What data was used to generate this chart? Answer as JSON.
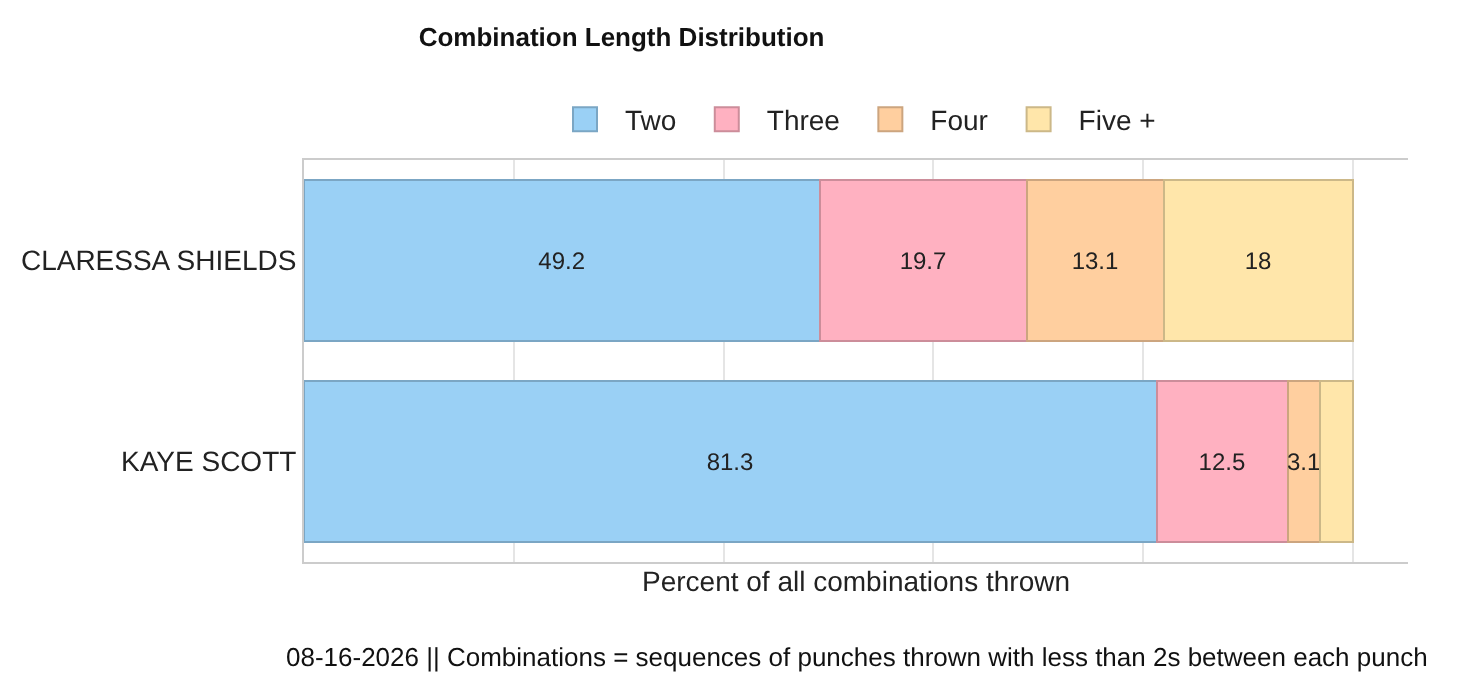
{
  "chart_data": {
    "type": "bar",
    "orientation": "horizontal",
    "stacked": true,
    "title": "Combination Length Distribution",
    "xlabel": "Percent of all combinations thrown",
    "categories": [
      "CLARESSA SHIELDS",
      "KAYE SCOTT"
    ],
    "series": [
      {
        "name": "Two",
        "color": "#9ad0f5",
        "values": [
          49.2,
          81.3
        ],
        "value_labels": [
          "49.2",
          "81.3"
        ]
      },
      {
        "name": "Three",
        "color": "#ffb1c1",
        "values": [
          19.7,
          12.5
        ],
        "value_labels": [
          "19.7",
          "12.5"
        ]
      },
      {
        "name": "Four",
        "color": "#ffcf9f",
        "values": [
          13.1,
          3.1
        ],
        "value_labels": [
          "13.1",
          "3.1"
        ]
      },
      {
        "name": "Five +",
        "color": "#ffe6aa",
        "values": [
          18,
          3.1
        ],
        "value_labels": [
          "18",
          null
        ]
      }
    ],
    "tick_labels": "y",
    "grid": "x",
    "legend": "top",
    "annotations": [
      "08-16-2026 || Combinations = sequences of punches thrown with less than 2s between each punch"
    ]
  }
}
